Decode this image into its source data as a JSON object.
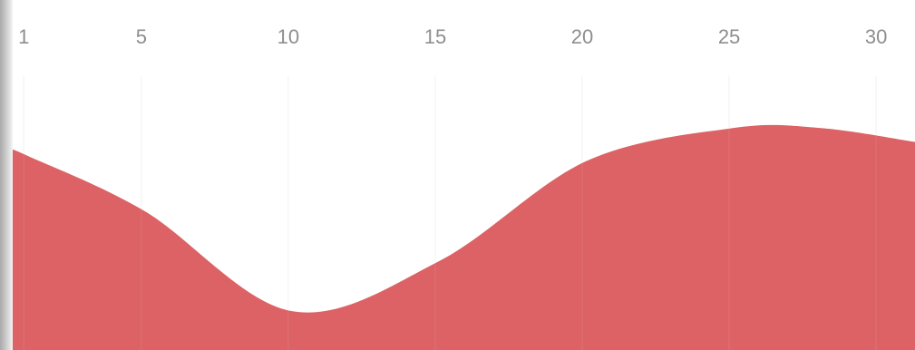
{
  "chart_data": {
    "type": "area",
    "title": "",
    "xlabel": "",
    "ylabel": "",
    "x_ticks": [
      1,
      5,
      10,
      15,
      20,
      25,
      30
    ],
    "x": [
      0.5,
      1,
      5,
      10,
      15,
      20,
      25,
      28,
      31.2
    ],
    "series": [
      {
        "values": [
          72,
          70,
          50,
          14,
          32,
          68,
          80,
          80,
          75
        ]
      }
    ],
    "xlim": [
      0.5,
      31.2
    ],
    "ylim": [
      0,
      100
    ],
    "grid": true,
    "legend": "none",
    "color": "#dc6265"
  }
}
